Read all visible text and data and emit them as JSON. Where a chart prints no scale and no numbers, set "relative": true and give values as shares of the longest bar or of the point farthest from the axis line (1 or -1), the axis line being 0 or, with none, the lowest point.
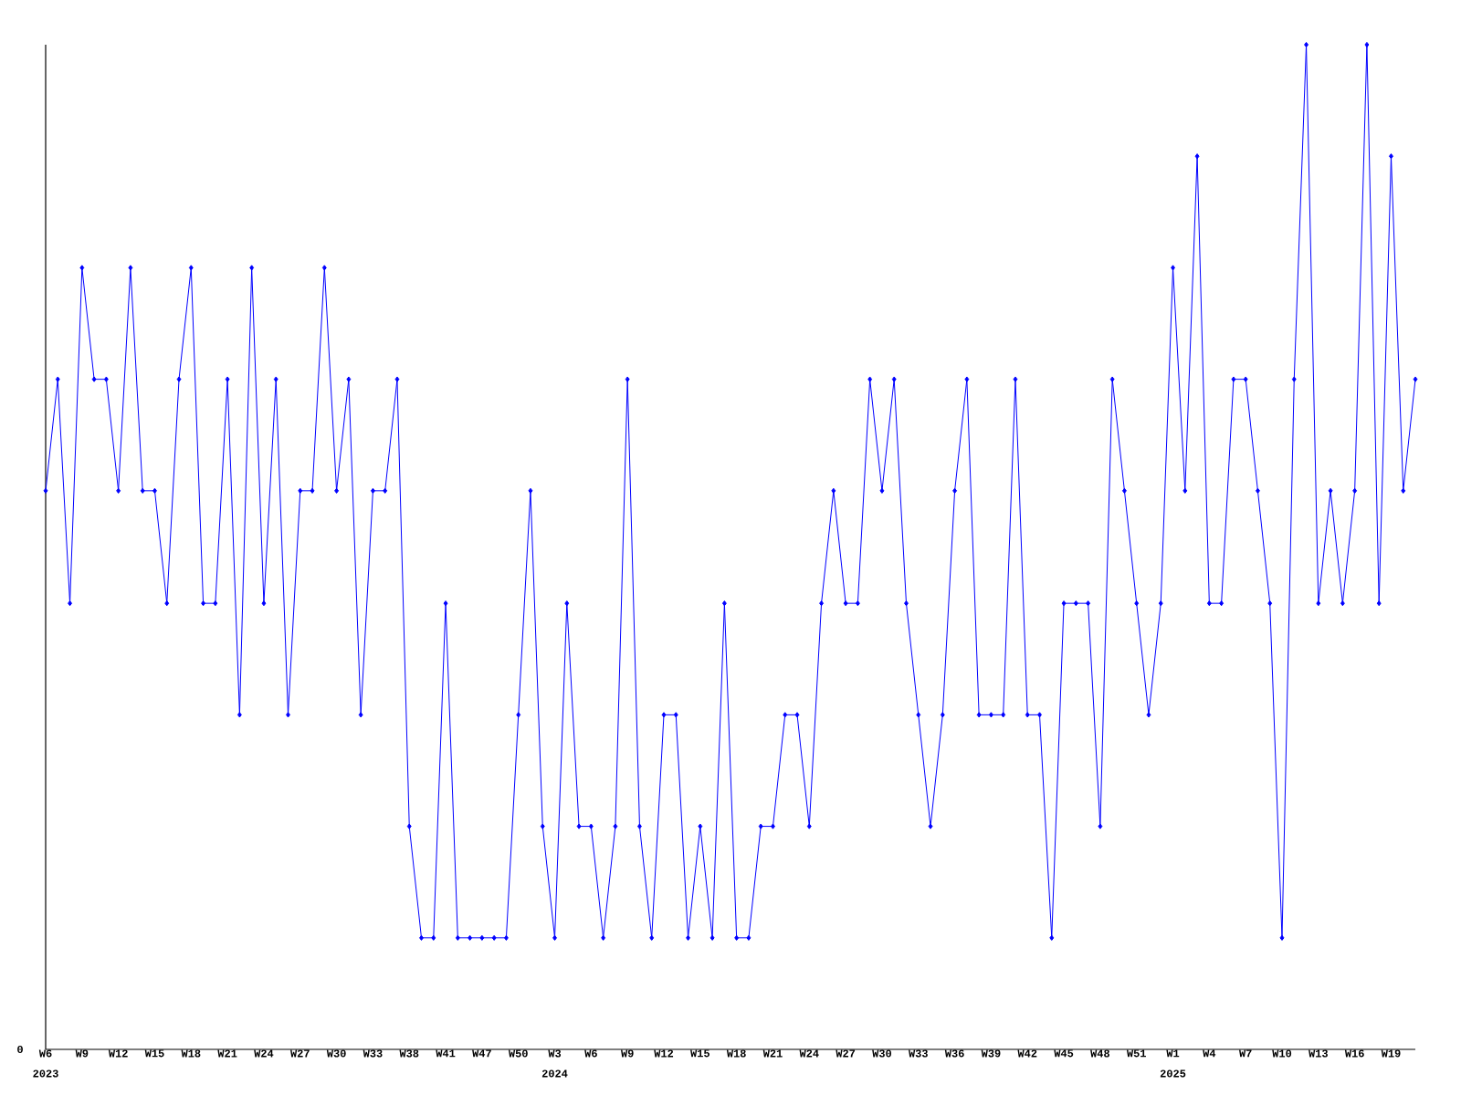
{
  "chart_data": {
    "type": "line",
    "relative": true,
    "color": "#0000ff",
    "marker": "diamond",
    "line_style": "solid",
    "categories": [
      "W6",
      null,
      null,
      "W9",
      null,
      null,
      "W12",
      null,
      null,
      "W15",
      null,
      null,
      "W18",
      null,
      null,
      "W21",
      null,
      null,
      "W24",
      null,
      null,
      "W27",
      null,
      null,
      "W30",
      null,
      null,
      "W33",
      null,
      null,
      "W38",
      null,
      null,
      "W41",
      null,
      null,
      "W47",
      null,
      null,
      "W50",
      null,
      null,
      "W3",
      null,
      null,
      "W6",
      null,
      null,
      "W9",
      null,
      null,
      "W12",
      null,
      null,
      "W15",
      null,
      null,
      "W18",
      null,
      null,
      "W21",
      null,
      null,
      "W24",
      null,
      null,
      "W27",
      null,
      null,
      "W30",
      null,
      null,
      "W33",
      null,
      null,
      "W36",
      null,
      null,
      "W39",
      null,
      null,
      "W42",
      null,
      null,
      "W45",
      null,
      null,
      "W48",
      null,
      null,
      "W51",
      null,
      null,
      "W1",
      null,
      null,
      "W4",
      null,
      null,
      "W7",
      null,
      null,
      "W10",
      null,
      null,
      "W13",
      null,
      null,
      "W16",
      null,
      null,
      "W19",
      null,
      null
    ],
    "values": [
      0.556,
      0.667,
      0.444,
      0.778,
      0.667,
      0.667,
      0.556,
      0.778,
      0.556,
      0.556,
      0.444,
      0.667,
      0.778,
      0.444,
      0.444,
      0.667,
      0.333,
      0.778,
      0.444,
      0.667,
      0.333,
      0.556,
      0.556,
      0.778,
      0.556,
      0.667,
      0.333,
      0.556,
      0.556,
      0.667,
      0.222,
      0.111,
      0.111,
      0.444,
      0.111,
      0.111,
      0.111,
      0.111,
      0.111,
      0.333,
      0.556,
      0.222,
      0.111,
      0.444,
      0.222,
      0.222,
      0.111,
      0.222,
      0.667,
      0.222,
      0.111,
      0.333,
      0.333,
      0.111,
      0.222,
      0.111,
      0.444,
      0.111,
      0.111,
      0.222,
      0.222,
      0.333,
      0.333,
      0.222,
      0.444,
      0.556,
      0.444,
      0.444,
      0.667,
      0.556,
      0.667,
      0.444,
      0.333,
      0.222,
      0.333,
      0.556,
      0.667,
      0.333,
      0.333,
      0.333,
      0.667,
      0.333,
      0.333,
      0.111,
      0.444,
      0.444,
      0.444,
      0.222,
      0.667,
      0.556,
      0.444,
      0.333,
      0.444,
      0.778,
      0.556,
      0.889,
      0.444,
      0.444,
      0.667,
      0.667,
      0.556,
      0.444,
      0.111,
      0.667,
      1,
      0.444,
      0.556,
      0.444,
      0.556,
      1,
      0.444,
      0.889,
      0.556,
      0.667
    ],
    "annotations": [
      "0",
      "2023",
      "2024",
      "2025"
    ]
  }
}
